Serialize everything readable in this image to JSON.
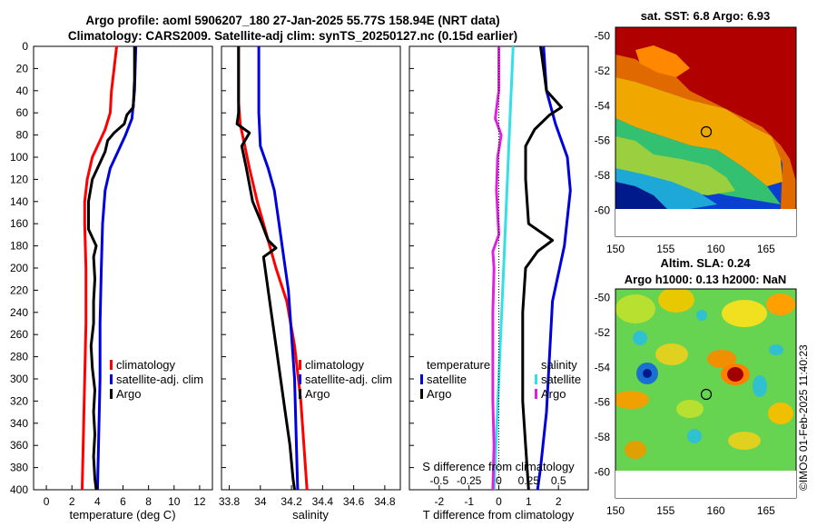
{
  "header": {
    "title_line1": "Argo profile: aoml 5906207_180 27-Jan-2025 55.77S 158.94E (NRT data)",
    "title_line2": "Climatology: CARS2009. Satellite-adj clim: synTS_20250127.nc (0.15d earlier)"
  },
  "credit": "©IMOS 01-Feb-2025 11:40:23",
  "colors": {
    "climatology": "#ff0000",
    "satellite": "#0000dd",
    "argo": "#000000",
    "sat_salinity": "#33e0e6",
    "argo_salinity_diff": "#dd22dd"
  },
  "chart_data": [
    {
      "id": "temperature",
      "type": "line",
      "xlabel": "temperature (deg C)",
      "ylabel": "",
      "xlim": [
        -1,
        13
      ],
      "ylim": [
        400,
        0
      ],
      "xticks": [
        0,
        2,
        4,
        6,
        8,
        10,
        12
      ],
      "yticks": [
        0,
        20,
        40,
        60,
        80,
        100,
        120,
        140,
        160,
        180,
        200,
        220,
        240,
        260,
        280,
        300,
        320,
        340,
        360,
        380,
        400
      ],
      "legend": [
        "climatology",
        "satellite-adj. clim",
        "Argo"
      ],
      "series": [
        {
          "name": "climatology",
          "color": "#ff0000",
          "depth": [
            0,
            20,
            40,
            60,
            75,
            85,
            100,
            120,
            140,
            160,
            200,
            250,
            300,
            350,
            400
          ],
          "values": [
            5.5,
            5.3,
            5.1,
            5.0,
            4.6,
            4.2,
            3.6,
            3.2,
            3.0,
            3.0,
            3.1,
            3.1,
            3.0,
            2.9,
            2.8
          ]
        },
        {
          "name": "satellite-adj. clim",
          "color": "#0000dd",
          "depth": [
            0,
            40,
            65,
            80,
            95,
            110,
            130,
            160,
            200,
            250,
            300,
            350,
            400
          ],
          "values": [
            7.0,
            6.9,
            6.7,
            6.2,
            5.6,
            5.0,
            4.6,
            4.4,
            4.3,
            4.2,
            4.2,
            4.1,
            4.0
          ]
        },
        {
          "name": "Argo",
          "color": "#000000",
          "depth": [
            0,
            30,
            55,
            62,
            70,
            78,
            85,
            95,
            105,
            120,
            140,
            165,
            180,
            190,
            210,
            230,
            250,
            270,
            290,
            310,
            330,
            350,
            370,
            390,
            400
          ],
          "values": [
            6.9,
            6.9,
            6.8,
            6.3,
            6.1,
            5.3,
            4.8,
            4.6,
            4.2,
            3.6,
            3.3,
            3.3,
            3.9,
            3.7,
            3.8,
            3.7,
            3.7,
            3.5,
            3.6,
            3.8,
            3.7,
            3.8,
            3.7,
            3.8,
            3.9
          ]
        }
      ]
    },
    {
      "id": "salinity",
      "type": "line",
      "xlabel": "salinity",
      "ylabel": "",
      "xlim": [
        33.75,
        34.9
      ],
      "ylim": [
        400,
        0
      ],
      "xticks": [
        33.8,
        34,
        34.2,
        34.4,
        34.6,
        34.8
      ],
      "xticklabels": [
        "33.8",
        "34",
        "34.2",
        "34.4",
        "34.6",
        "34.8"
      ],
      "legend": [
        "climatology",
        "satellite-adj. clim",
        "Argo"
      ],
      "series": [
        {
          "name": "climatology",
          "color": "#ff0000",
          "depth": [
            0,
            50,
            70,
            90,
            110,
            140,
            170,
            200,
            230,
            270,
            320,
            360,
            400
          ],
          "values": [
            33.86,
            33.86,
            33.87,
            33.9,
            33.93,
            33.98,
            34.04,
            34.1,
            34.17,
            34.22,
            34.26,
            34.28,
            34.3
          ]
        },
        {
          "name": "satellite-adj. clim",
          "color": "#0000dd",
          "depth": [
            0,
            60,
            90,
            110,
            130,
            160,
            190,
            220,
            260,
            300,
            350,
            400
          ],
          "values": [
            33.99,
            33.99,
            34.0,
            34.05,
            34.09,
            34.12,
            34.15,
            34.18,
            34.2,
            34.22,
            34.23,
            34.24
          ]
        },
        {
          "name": "Argo",
          "color": "#000000",
          "depth": [
            0,
            60,
            70,
            78,
            90,
            110,
            140,
            160,
            175,
            182,
            190,
            210,
            240,
            270,
            300,
            330,
            360,
            390,
            400
          ],
          "values": [
            33.86,
            33.86,
            33.85,
            33.93,
            33.88,
            33.91,
            33.95,
            34.01,
            34.05,
            34.1,
            34.02,
            34.04,
            34.07,
            34.1,
            34.13,
            34.16,
            34.19,
            34.21,
            34.22
          ]
        }
      ]
    },
    {
      "id": "difference",
      "type": "line",
      "xlabel": "T difference from climatology",
      "x2label": "S difference from climatology",
      "xlim": [
        -3,
        3
      ],
      "ylim": [
        400,
        0
      ],
      "xticks": [
        -2,
        -1,
        0,
        1,
        2
      ],
      "x2lim": [
        -0.75,
        0.75
      ],
      "x2ticks": [
        -0.5,
        -0.25,
        0,
        0.25,
        0.5
      ],
      "x2ticklabels": [
        "-0.5",
        "-0.25",
        "0",
        "0.25",
        "0.5"
      ],
      "legend_temperature": [
        "temperature",
        "satellite",
        "Argo"
      ],
      "legend_salinity": [
        "salinity",
        "satellite",
        "Argo"
      ],
      "series": [
        {
          "name": "T satellite",
          "color": "#0000dd",
          "depth": [
            0,
            40,
            70,
            100,
            130,
            180,
            230,
            280,
            330,
            380,
            400
          ],
          "values": [
            1.5,
            1.6,
            1.9,
            2.3,
            2.4,
            2.2,
            1.8,
            1.7,
            1.6,
            1.4,
            1.3
          ]
        },
        {
          "name": "T Argo",
          "color": "#000000",
          "depth": [
            0,
            20,
            40,
            55,
            62,
            75,
            90,
            120,
            160,
            175,
            185,
            200,
            240,
            280,
            320,
            360,
            400
          ],
          "values": [
            1.4,
            1.5,
            1.6,
            2.1,
            1.7,
            1.2,
            0.9,
            0.9,
            1.0,
            1.8,
            1.3,
            0.9,
            0.8,
            0.8,
            0.8,
            0.9,
            1.0
          ]
        },
        {
          "name": "S satellite",
          "color": "#33e0e6",
          "depth": [
            0,
            50,
            100,
            150,
            200,
            250,
            300,
            350,
            400
          ],
          "values": [
            0.12,
            0.1,
            0.08,
            0.06,
            0.04,
            0.02,
            0.0,
            -0.02,
            -0.04
          ]
        },
        {
          "name": "S Argo",
          "color": "#dd22dd",
          "depth": [
            0,
            40,
            65,
            80,
            100,
            130,
            170,
            185,
            200,
            240,
            280,
            320,
            360,
            400
          ],
          "values": [
            0.0,
            0.0,
            -0.03,
            0.02,
            -0.01,
            -0.02,
            0.0,
            -0.05,
            -0.04,
            -0.05,
            -0.05,
            -0.05,
            -0.04,
            -0.05
          ]
        }
      ]
    },
    {
      "id": "sst_map",
      "type": "heatmap",
      "title": "sat. SST: 6.8 Argo: 6.93",
      "xlim": [
        150,
        168
      ],
      "ylim": [
        -61.5,
        -49.5
      ],
      "xticks": [
        150,
        155,
        160,
        165
      ],
      "yticks": [
        -50,
        -52,
        -54,
        -56,
        -58,
        -60
      ],
      "marker": {
        "lon": 158.94,
        "lat": -55.77
      }
    },
    {
      "id": "sla_map",
      "type": "heatmap",
      "title_line1": "Altim. SLA: 0.24",
      "title_line2": "Argo h1000: 0.13 h2000: NaN",
      "xlim": [
        150,
        168
      ],
      "ylim": [
        -61.5,
        -49.5
      ],
      "xticks": [
        150,
        155,
        160,
        165
      ],
      "yticks": [
        -50,
        -52,
        -54,
        -56,
        -58,
        -60
      ],
      "marker": {
        "lon": 158.94,
        "lat": -55.77
      }
    }
  ]
}
